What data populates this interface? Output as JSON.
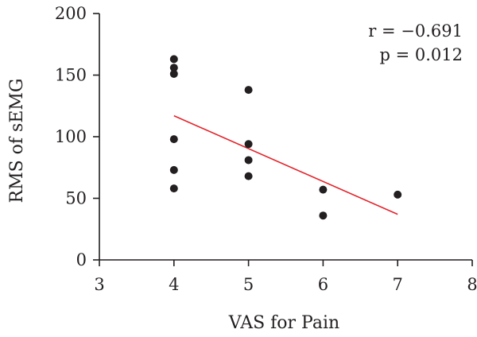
{
  "chart_data": {
    "type": "scatter",
    "title": "",
    "xlabel": "VAS for Pain",
    "ylabel": "RMS of sEMG",
    "xlim": [
      3,
      8
    ],
    "ylim": [
      0,
      200
    ],
    "xticks": [
      3,
      4,
      5,
      6,
      7,
      8
    ],
    "yticks": [
      0,
      50,
      100,
      150,
      200
    ],
    "grid": false,
    "series": [
      {
        "points": [
          {
            "x": 4,
            "y": 163
          },
          {
            "x": 4,
            "y": 156
          },
          {
            "x": 4,
            "y": 151
          },
          {
            "x": 4,
            "y": 98
          },
          {
            "x": 4,
            "y": 73
          },
          {
            "x": 4,
            "y": 58
          },
          {
            "x": 5,
            "y": 138
          },
          {
            "x": 5,
            "y": 94
          },
          {
            "x": 5,
            "y": 81
          },
          {
            "x": 5,
            "y": 68
          },
          {
            "x": 6,
            "y": 57
          },
          {
            "x": 6,
            "y": 36
          },
          {
            "x": 7,
            "y": 53
          }
        ],
        "color": "#231f20"
      }
    ],
    "trend_line": {
      "x": [
        4,
        7
      ],
      "y": [
        117,
        37
      ],
      "color": "#e3242b"
    },
    "annotations": [
      "r = −0.691",
      "p = 0.012"
    ]
  }
}
